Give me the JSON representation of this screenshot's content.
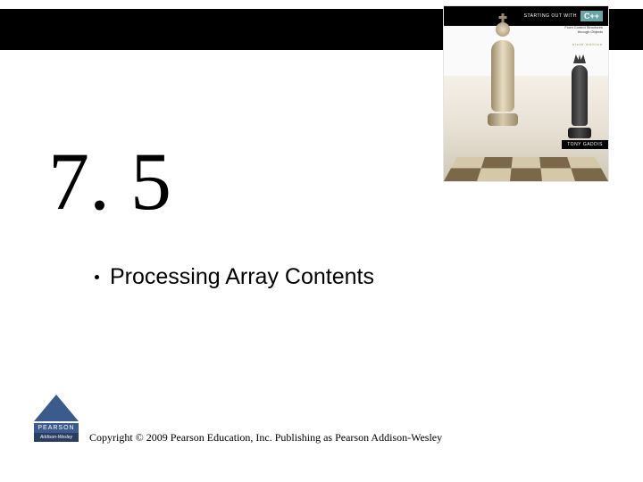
{
  "header": {
    "bar_color": "#000000",
    "cover": {
      "starting_out": "STARTING OUT WITH",
      "lang_badge": "C++",
      "subtitle_line1": "From Control Structures",
      "subtitle_line2": "through Objects",
      "edition": "sixth edition",
      "author": "TONY GADDIS",
      "badge_bg": "#6aa5a5"
    }
  },
  "section": {
    "number": "7. 5",
    "bullets": [
      "Processing Array Contents"
    ]
  },
  "footer": {
    "publisher_top": "PEARSON",
    "publisher_bottom": "Addison-Wesley",
    "copyright": "Copyright © 2009 Pearson Education, Inc. Publishing as Pearson Addison-Wesley"
  },
  "colors": {
    "background": "#ffffff",
    "text": "#000000",
    "pearson_blue": "#3b5b8c",
    "pearson_dark": "#2a3e60"
  },
  "typography": {
    "section_number_fontsize": 92,
    "bullet_fontsize": 25,
    "copyright_fontsize": 12
  }
}
